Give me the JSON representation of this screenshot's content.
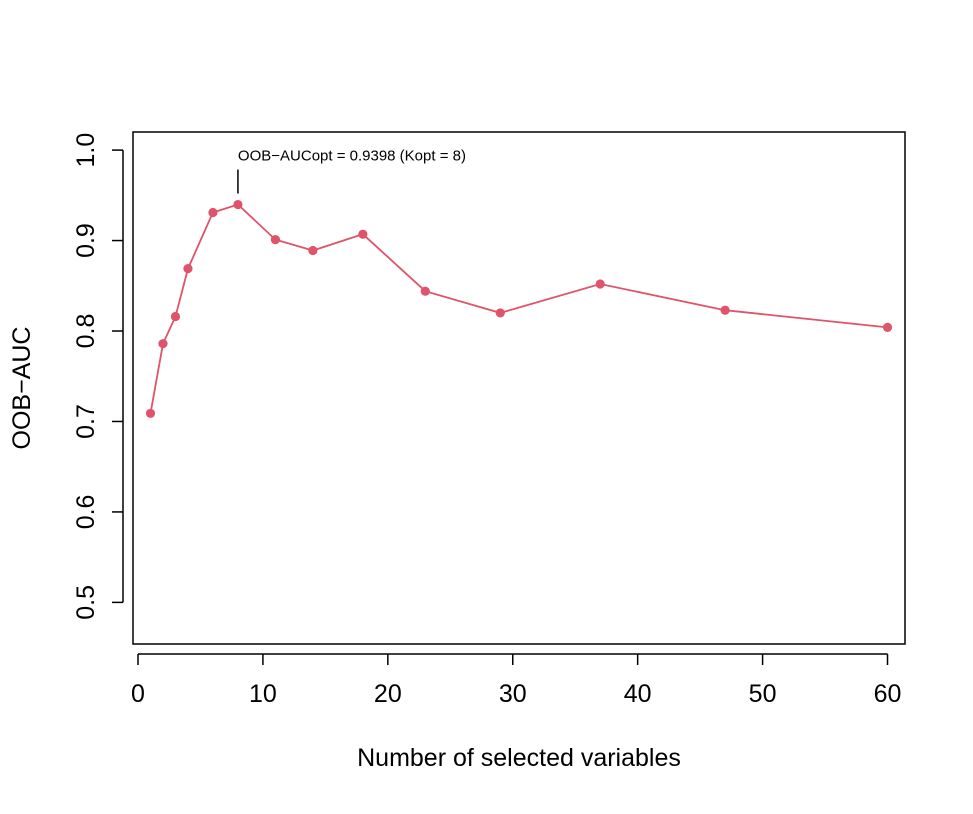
{
  "chart_data": {
    "type": "line",
    "title": "",
    "xlabel": "Number of selected variables",
    "ylabel": "OOB−AUC",
    "xlim": [
      -0.4,
      61.4
    ],
    "ylim": [
      0.454,
      1.02
    ],
    "x_ticks": [
      0,
      10,
      20,
      30,
      40,
      50,
      60
    ],
    "y_ticks": [
      0.5,
      0.6,
      0.7,
      0.8,
      0.9,
      1.0
    ],
    "x_tick_labels": [
      "0",
      "10",
      "20",
      "30",
      "40",
      "50",
      "60"
    ],
    "y_tick_labels": [
      "0.5",
      "0.6",
      "0.7",
      "0.8",
      "0.9",
      "1.0"
    ],
    "grid": false,
    "legend": "none",
    "series": [
      {
        "color": "#df536b",
        "x": [
          1,
          2,
          3,
          4,
          6,
          8,
          11,
          14,
          18,
          23,
          29,
          37,
          47,
          60
        ],
        "y": [
          0.709,
          0.786,
          0.816,
          0.869,
          0.931,
          0.9398,
          0.901,
          0.889,
          0.907,
          0.844,
          0.82,
          0.852,
          0.823,
          0.804
        ]
      }
    ],
    "annotations": [
      {
        "text": "OOB−AUCopt = 0.9398 (Kopt = 8)",
        "x": 8,
        "y": 0.9398
      }
    ]
  }
}
